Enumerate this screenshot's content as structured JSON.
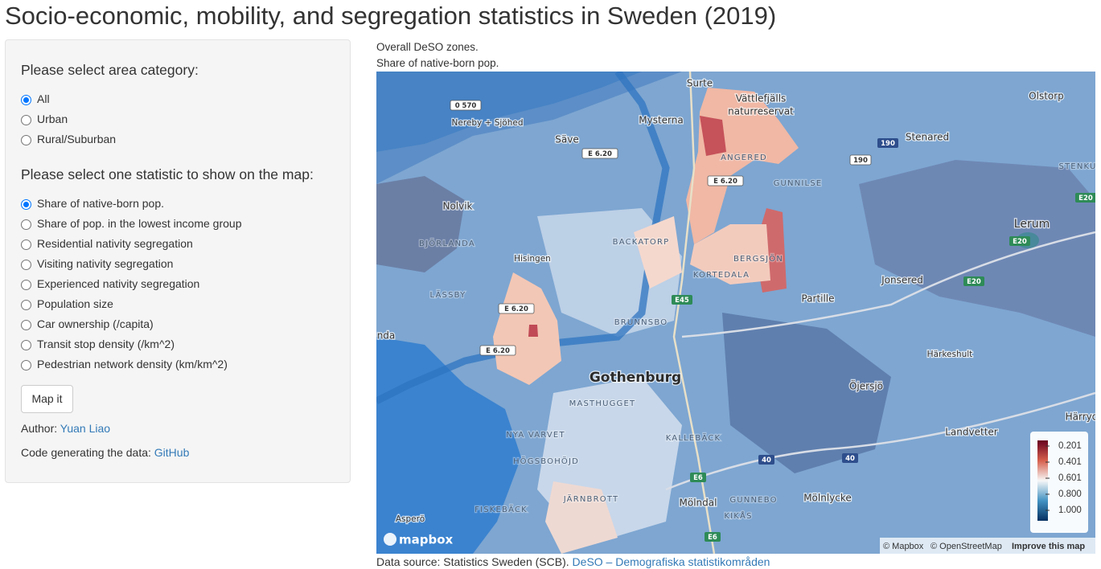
{
  "header": {
    "title": "Socio-economic, mobility, and segregation statistics in Sweden (2019)"
  },
  "sidebar": {
    "area_label": "Please select area category:",
    "area_options": [
      "All",
      "Urban",
      "Rural/Suburban"
    ],
    "area_selected": 0,
    "stat_label": "Please select one statistic to show on the map:",
    "stat_options": [
      "Share of native-born pop.",
      "Share of pop. in the lowest income group",
      "Residential nativity segregation",
      "Visiting nativity segregation",
      "Experienced nativity segregation",
      "Population size",
      "Car ownership (/capita)",
      "Transit stop density (/km^2)",
      "Pedestrian network density (km/km^2)"
    ],
    "stat_selected": 0,
    "button": "Map it",
    "author_prefix": "Author:",
    "author_link": "Yuan Liao",
    "code_prefix": "Code generating the data:",
    "code_link": "GitHub"
  },
  "map": {
    "caption_lines": [
      "Overall DeSO zones.",
      "Share of native-born pop."
    ],
    "places": [
      "Surte",
      "Vättlefjälls",
      "naturreservat",
      "Mysterna",
      "Säve",
      "Nereby + Sjöhed",
      "Olstorp",
      "Stenared",
      "STENKU",
      "Nolvik",
      "BJÖRLANDA",
      "Hisingen",
      "BACKATORP",
      "ANGERED",
      "GUNNILSE",
      "BERGSJÖN",
      "KORTEDALA",
      "Lerum",
      "Jonsered",
      "Partille",
      "LÄSSBY",
      "nda",
      "BRUNNSBO",
      "Härkeshult",
      "Gothenburg",
      "MASTHUGGET",
      "Öjersjö",
      "NYA VARVET",
      "KALLEBÄCK",
      "Landvetter",
      "Härryd",
      "HÖGSBOHÖJD",
      "Mölndal",
      "GUNNEBO",
      "Mölnlycke",
      "KIKÅS",
      "FISKEBÄCK",
      "JÄRNBROTT",
      "Asperö"
    ],
    "roads": [
      "0 570",
      "E 6.20",
      "E 6.20",
      "190",
      "190",
      "E20",
      "E20",
      "E20",
      "E45",
      "E 6.20",
      "E 6.20",
      "40",
      "40",
      "E6",
      "E6"
    ],
    "legend": {
      "ticks": [
        0.201,
        0.401,
        0.601,
        {
          "value": 0.8,
          "label": "0.800"
        },
        {
          "value": 1,
          "label": "1.000"
        }
      ]
    },
    "logo": "mapbox",
    "attribution": [
      "© Mapbox",
      "© OpenStreetMap",
      "Improve this map"
    ]
  },
  "footer": {
    "prefix": "Data source: Statistics Sweden (SCB).",
    "link": "DeSO – Demografiska statistikområden"
  }
}
